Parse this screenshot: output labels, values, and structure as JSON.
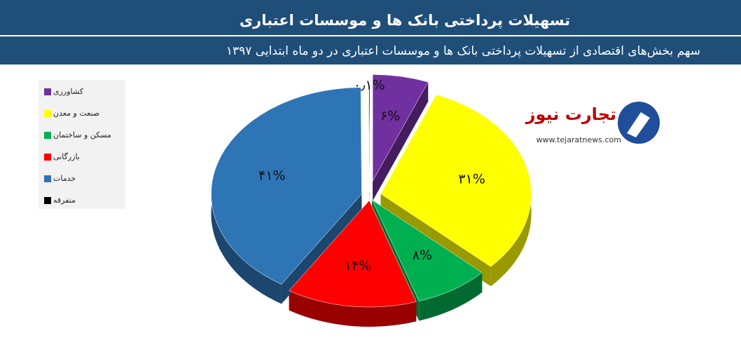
{
  "chart_data": {
    "type": "pie",
    "title": "تسهیلات پرداختی بانک ها و موسسات اعتباری",
    "subtitle": "سهم بخش‌های اقتصادی از تسهیلات پرداختی بانک ها و موسسات اعتباری در دو ماه ابتدایی ۱۳۹۷",
    "categories": [
      "کشاورزی",
      "صنعت و معدن",
      "مسکن و ساختمان",
      "بازرگانی",
      "خدمات",
      "متفرقه"
    ],
    "values": [
      6,
      31,
      8,
      14,
      41,
      0.1
    ],
    "value_labels": [
      "۶%",
      "۳۱%",
      "۸%",
      "۱۴%",
      "۴۱%",
      "۰٫۱%"
    ],
    "colors": [
      "#7030a0",
      "#ffff00",
      "#00b050",
      "#ff0000",
      "#2e75b6",
      "#000000"
    ],
    "legend": "left"
  },
  "logo": {
    "name": "تجارت نیوز",
    "url": "www.tejaratnews.com"
  }
}
